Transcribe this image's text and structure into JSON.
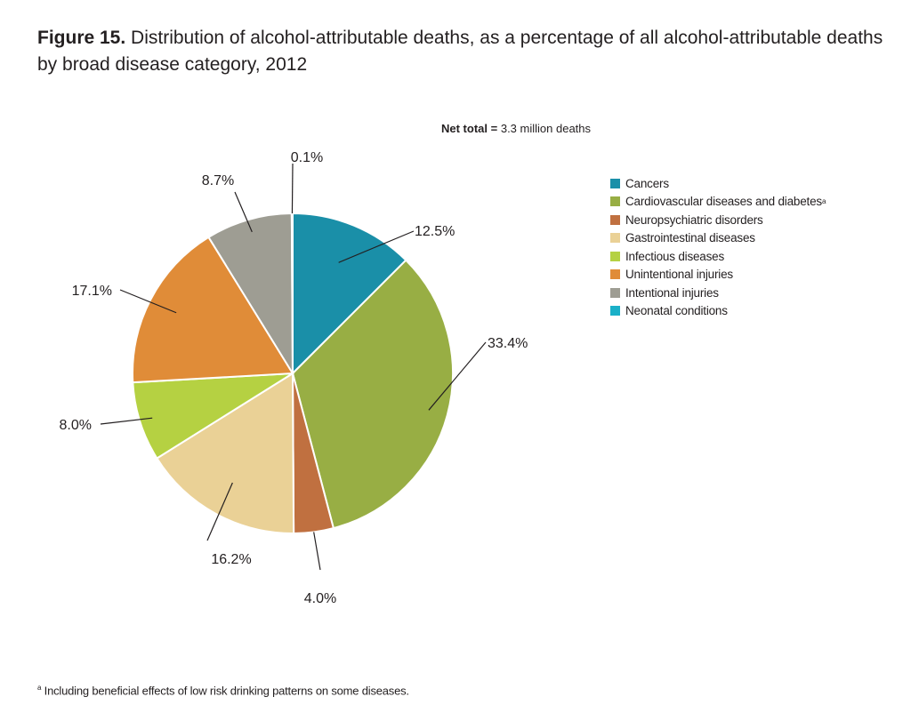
{
  "title": {
    "figure_label": "Figure 15.",
    "text": "Distribution of alcohol-attributable deaths, as a percentage of all alcohol-attributable deaths by broad disease category, 2012"
  },
  "net_total": {
    "label": "Net total =",
    "value": "3.3 million deaths"
  },
  "footnote": {
    "marker": "a",
    "text": "Including beneficial effects of low risk drinking patterns on some diseases."
  },
  "chart_data": {
    "type": "pie",
    "title": "Distribution of alcohol-attributable deaths, as a percentage of all alcohol-attributable deaths by broad disease category, 2012",
    "unit": "%",
    "legend_position": "right",
    "categories": [
      "Cancers",
      "Cardiovascular diseases and diabetes",
      "Neuropsychiatric disorders",
      "Gastrointestinal diseases",
      "Infectious diseases",
      "Unintentional injuries",
      "Intentional injuries",
      "Neonatal conditions"
    ],
    "values": [
      12.5,
      33.4,
      4.0,
      16.2,
      8.0,
      17.1,
      8.7,
      0.1
    ],
    "labels": [
      "12.5%",
      "33.4%",
      "4.0%",
      "16.2%",
      "8.0%",
      "17.1%",
      "8.7%",
      "0.1%"
    ],
    "colors": [
      "#1a8fa8",
      "#98ae44",
      "#c07040",
      "#ead196",
      "#b5d142",
      "#e08c38",
      "#9e9d93",
      "#1ab0c8"
    ],
    "legend_superscripts": [
      "",
      "a",
      "",
      "",
      "",
      "",
      "",
      ""
    ]
  }
}
